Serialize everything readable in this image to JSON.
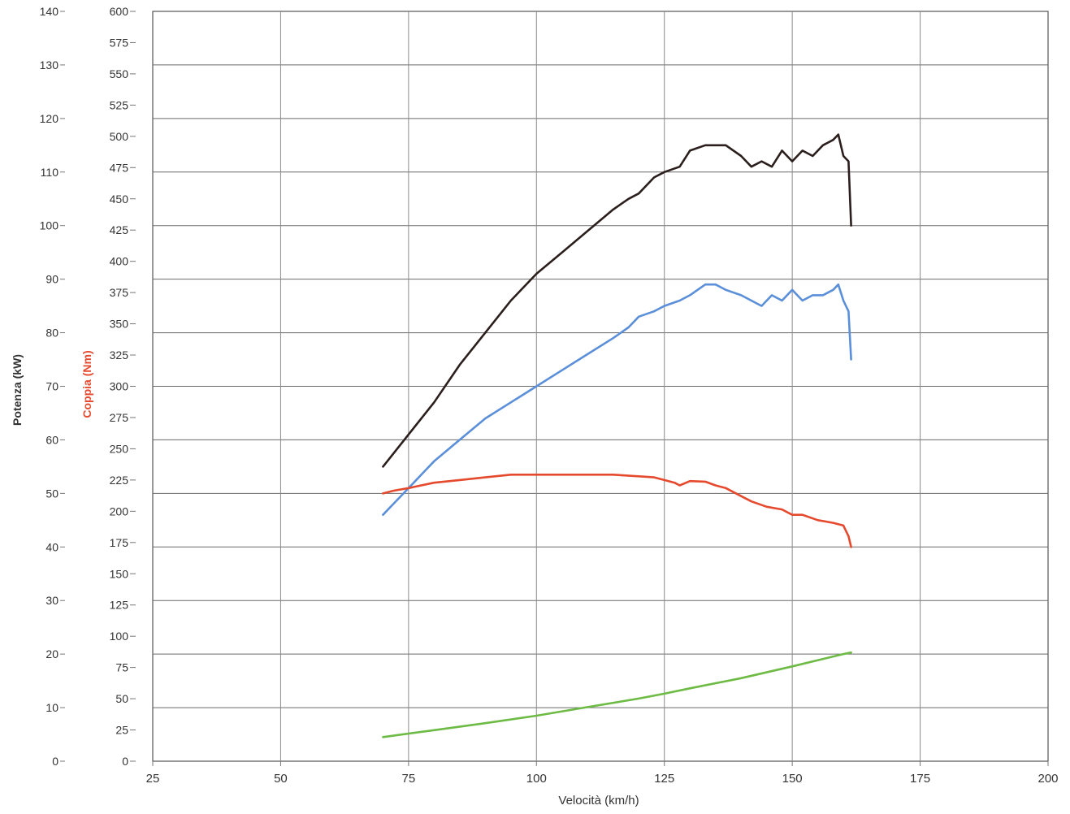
{
  "chart_data": {
    "type": "line",
    "xlabel": "Velocità (km/h)",
    "x_ticks": [
      25,
      50,
      75,
      100,
      125,
      150,
      175,
      200
    ],
    "xlim": [
      25,
      200
    ],
    "y_left": {
      "label": "Potenza (kW)",
      "ticks": [
        0,
        10,
        20,
        30,
        40,
        50,
        60,
        70,
        80,
        90,
        100,
        110,
        120,
        130,
        140
      ],
      "ylim": [
        0,
        140
      ]
    },
    "y_right": {
      "label": "Coppia (Nm)",
      "ticks": [
        0,
        25,
        50,
        75,
        100,
        125,
        150,
        175,
        200,
        225,
        250,
        275,
        300,
        325,
        350,
        375,
        400,
        425,
        450,
        475,
        500,
        525,
        550,
        575,
        600
      ],
      "ylim": [
        0,
        600
      ]
    },
    "grid": true,
    "series": [
      {
        "color": "#2b1f1d",
        "axis": "power",
        "points": [
          [
            70,
            55
          ],
          [
            75,
            61
          ],
          [
            80,
            67
          ],
          [
            85,
            74
          ],
          [
            90,
            80
          ],
          [
            95,
            86
          ],
          [
            100,
            91
          ],
          [
            105,
            95
          ],
          [
            110,
            99
          ],
          [
            115,
            103
          ],
          [
            118,
            105
          ],
          [
            120,
            106
          ],
          [
            123,
            109
          ],
          [
            125,
            110
          ],
          [
            128,
            111
          ],
          [
            130,
            114
          ],
          [
            133,
            115
          ],
          [
            135,
            115
          ],
          [
            137,
            115
          ],
          [
            140,
            113
          ],
          [
            142,
            111
          ],
          [
            144,
            112
          ],
          [
            146,
            111
          ],
          [
            148,
            114
          ],
          [
            150,
            112
          ],
          [
            152,
            114
          ],
          [
            154,
            113
          ],
          [
            156,
            115
          ],
          [
            158,
            116
          ],
          [
            159,
            117
          ],
          [
            160,
            113
          ],
          [
            161,
            112
          ],
          [
            161.5,
            100
          ]
        ]
      },
      {
        "color": "#5b8fd9",
        "axis": "power",
        "points": [
          [
            70,
            46
          ],
          [
            72,
            48
          ],
          [
            75,
            51
          ],
          [
            78,
            54
          ],
          [
            80,
            56
          ],
          [
            85,
            60
          ],
          [
            90,
            64
          ],
          [
            95,
            67
          ],
          [
            100,
            70
          ],
          [
            105,
            73
          ],
          [
            110,
            76
          ],
          [
            115,
            79
          ],
          [
            118,
            81
          ],
          [
            120,
            83
          ],
          [
            123,
            84
          ],
          [
            125,
            85
          ],
          [
            128,
            86
          ],
          [
            130,
            87
          ],
          [
            133,
            89
          ],
          [
            135,
            89
          ],
          [
            137,
            88
          ],
          [
            140,
            87
          ],
          [
            142,
            86
          ],
          [
            144,
            85
          ],
          [
            146,
            87
          ],
          [
            148,
            86
          ],
          [
            150,
            88
          ],
          [
            152,
            86
          ],
          [
            154,
            87
          ],
          [
            156,
            87
          ],
          [
            158,
            88
          ],
          [
            159,
            89
          ],
          [
            160,
            86
          ],
          [
            161,
            84
          ],
          [
            161.5,
            75
          ]
        ]
      },
      {
        "color": "#e64a2e",
        "axis": "power",
        "points": [
          [
            70,
            50
          ],
          [
            72,
            50.5
          ],
          [
            75,
            51
          ],
          [
            80,
            52
          ],
          [
            85,
            52.5
          ],
          [
            90,
            53
          ],
          [
            95,
            53.5
          ],
          [
            100,
            53.5
          ],
          [
            105,
            53.5
          ],
          [
            110,
            53.5
          ],
          [
            115,
            53.5
          ],
          [
            120,
            53.2
          ],
          [
            123,
            53
          ],
          [
            125,
            52.5
          ],
          [
            127,
            52
          ],
          [
            128,
            51.5
          ],
          [
            130,
            52.3
          ],
          [
            133,
            52.2
          ],
          [
            135,
            51.5
          ],
          [
            137,
            51
          ],
          [
            140,
            49.5
          ],
          [
            142,
            48.5
          ],
          [
            145,
            47.5
          ],
          [
            148,
            47
          ],
          [
            150,
            46
          ],
          [
            152,
            46
          ],
          [
            155,
            45
          ],
          [
            158,
            44.5
          ],
          [
            160,
            44
          ],
          [
            161,
            42
          ],
          [
            161.5,
            40
          ]
        ]
      },
      {
        "color": "#6dbb45",
        "axis": "power",
        "points": [
          [
            70,
            4.5
          ],
          [
            80,
            5.8
          ],
          [
            90,
            7.1
          ],
          [
            100,
            8.5
          ],
          [
            110,
            10.1
          ],
          [
            120,
            11.7
          ],
          [
            125,
            12.6
          ],
          [
            130,
            13.6
          ],
          [
            140,
            15.5
          ],
          [
            150,
            17.7
          ],
          [
            160,
            20.0
          ],
          [
            161.5,
            20.3
          ]
        ]
      }
    ]
  }
}
